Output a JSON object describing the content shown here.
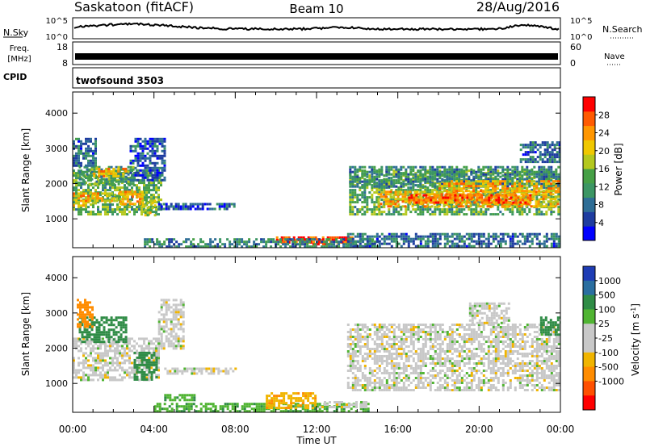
{
  "header": {
    "station": "Saskatoon (fitACF)",
    "beam": "Beam 10",
    "date": "28/Aug/2016"
  },
  "strips": {
    "nsky_label": "N.Sky",
    "nsky_ticks": [
      "10^5",
      "10^0"
    ],
    "nsearch_label": "N.Search",
    "freq_label": "Freq.",
    "freq_unit": "[MHz]",
    "freq_ticks": [
      "18",
      "8"
    ],
    "nave_label": "Nave",
    "nave_ticks": [
      "60",
      "0"
    ],
    "cpid_label": "CPID",
    "cpid_value": "twofsound 3503"
  },
  "colors": {
    "power_scale": [
      "#0000ff",
      "#1e3ca0",
      "#2f6e96",
      "#3c9664",
      "#46a046",
      "#b4c81e",
      "#f0c800",
      "#ff9600",
      "#ff5a00",
      "#ff0000"
    ],
    "velocity_scale": [
      "#1e3cb4",
      "#2a6ea0",
      "#2f8c46",
      "#50b432",
      "#c8c8c8",
      "#c8c8c8",
      "#f0b400",
      "#ff8c00",
      "#ff5000",
      "#ff0000"
    ]
  },
  "chart_data": [
    {
      "type": "heatmap",
      "name": "power",
      "xlabel": "Time UT",
      "ylabel": "Slant Range [km]",
      "colorbar_label": "Power [dB]",
      "colorbar_ticks": [
        4,
        8,
        12,
        16,
        20,
        24,
        28
      ],
      "colorbar_range": [
        0,
        32
      ],
      "xlim": [
        0,
        24
      ],
      "ylim": [
        180,
        4600
      ],
      "x_ticks": [
        "00:00",
        "04:00",
        "08:00",
        "12:00",
        "16:00",
        "20:00",
        "00:00"
      ],
      "y_ticks": [
        1000,
        2000,
        3000,
        4000
      ],
      "regions": [
        {
          "t0": 0.0,
          "t1": 4.3,
          "r0": 1150,
          "r1": 2400,
          "v": 14
        },
        {
          "t0": 0.0,
          "t1": 1.2,
          "r0": 1350,
          "r1": 1750,
          "v": 22
        },
        {
          "t0": 0.8,
          "t1": 2.3,
          "r0": 1500,
          "r1": 1750,
          "v": 20
        },
        {
          "t0": 2.3,
          "t1": 3.4,
          "r0": 1400,
          "r1": 1800,
          "v": 22
        },
        {
          "t0": 3.4,
          "t1": 4.1,
          "r0": 1100,
          "r1": 1550,
          "v": 18
        },
        {
          "t0": 0.3,
          "t1": 3.0,
          "r0": 2000,
          "r1": 2500,
          "v": 12
        },
        {
          "t0": 1.0,
          "t1": 2.6,
          "r0": 2200,
          "r1": 2450,
          "v": 22
        },
        {
          "t0": 0.0,
          "t1": 1.1,
          "r0": 2500,
          "r1": 3300,
          "v": 8
        },
        {
          "t0": 2.8,
          "t1": 4.5,
          "r0": 2100,
          "r1": 3300,
          "v": 6
        },
        {
          "t0": 4.2,
          "t1": 8.0,
          "r0": 1300,
          "r1": 1450,
          "v": 6
        },
        {
          "t0": 10.0,
          "t1": 13.7,
          "r0": 300,
          "r1": 500,
          "v": 28
        },
        {
          "t0": 11.2,
          "t1": 12.6,
          "r0": 300,
          "r1": 450,
          "v": 30
        },
        {
          "t0": 3.5,
          "t1": 15.0,
          "r0": 180,
          "r1": 450,
          "v": 10
        },
        {
          "t0": 13.6,
          "t1": 24.0,
          "r0": 1100,
          "r1": 2400,
          "v": 14
        },
        {
          "t0": 15.0,
          "t1": 24.0,
          "r0": 1350,
          "r1": 1800,
          "v": 22
        },
        {
          "t0": 16.5,
          "t1": 22.5,
          "r0": 1450,
          "r1": 1700,
          "v": 26
        },
        {
          "t0": 13.6,
          "t1": 24.0,
          "r0": 1900,
          "r1": 2500,
          "v": 10
        },
        {
          "t0": 18.0,
          "t1": 24.0,
          "r0": 1800,
          "r1": 2100,
          "v": 22
        },
        {
          "t0": 13.5,
          "t1": 24.0,
          "r0": 180,
          "r1": 600,
          "v": 8
        },
        {
          "t0": 22.0,
          "t1": 24.0,
          "r0": 2600,
          "r1": 3200,
          "v": 8
        }
      ]
    },
    {
      "type": "heatmap",
      "name": "velocity",
      "xlabel": "Time UT",
      "ylabel": "Slant Range [km]",
      "colorbar_label": "Velocity [m s^-1]",
      "colorbar_ticks": [
        "1000",
        "500",
        "100",
        "25",
        "-25",
        "-100",
        "-500",
        "-1000"
      ],
      "xlim": [
        0,
        24
      ],
      "ylim": [
        180,
        4600
      ],
      "x_ticks": [
        "00:00",
        "04:00",
        "08:00",
        "12:00",
        "16:00",
        "20:00",
        "00:00"
      ],
      "y_ticks": [
        1000,
        2000,
        3000,
        4000
      ],
      "regions": [
        {
          "t0": 0.0,
          "t1": 4.2,
          "r0": 1100,
          "r1": 2300,
          "v": 0
        },
        {
          "t0": 0.3,
          "t1": 2.6,
          "r0": 2200,
          "r1": 2900,
          "v": 150
        },
        {
          "t0": 0.2,
          "t1": 1.0,
          "r0": 2600,
          "r1": 3400,
          "v": -150
        },
        {
          "t0": 3.0,
          "t1": 4.1,
          "r0": 1100,
          "r1": 1900,
          "v": 150
        },
        {
          "t0": 4.2,
          "t1": 5.5,
          "r0": 2000,
          "r1": 3400,
          "v": 0
        },
        {
          "t0": 4.5,
          "t1": 8.0,
          "r0": 1300,
          "r1": 1450,
          "v": 0
        },
        {
          "t0": 4.5,
          "t1": 6.0,
          "r0": 500,
          "r1": 700,
          "v": 80
        },
        {
          "t0": 4.0,
          "t1": 14.5,
          "r0": 200,
          "r1": 450,
          "v": 80
        },
        {
          "t0": 9.5,
          "t1": 12.0,
          "r0": 300,
          "r1": 750,
          "v": -80
        },
        {
          "t0": 12.0,
          "t1": 14.5,
          "r0": 300,
          "r1": 500,
          "v": 0
        },
        {
          "t0": 13.5,
          "t1": 24.0,
          "r0": 800,
          "r1": 2700,
          "v": 0
        },
        {
          "t0": 19.5,
          "t1": 21.5,
          "r0": 2700,
          "r1": 3300,
          "v": 0
        },
        {
          "t0": 23.0,
          "t1": 24.0,
          "r0": 2400,
          "r1": 2900,
          "v": 200
        }
      ]
    }
  ]
}
